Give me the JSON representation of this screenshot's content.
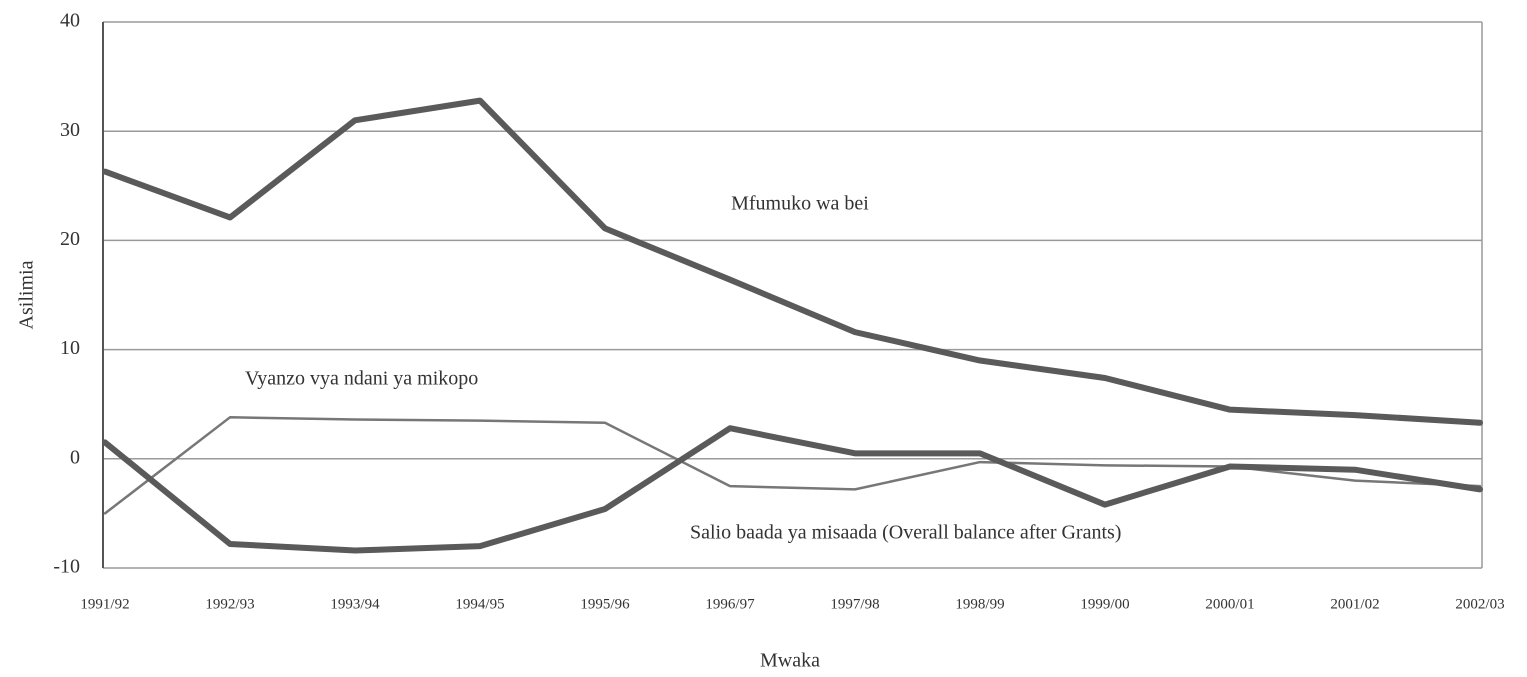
{
  "chart_data": {
    "type": "line",
    "x_label": "Mwaka",
    "y_label": "Asilimia",
    "categories": [
      "1991/92",
      "1992/93",
      "1993/94",
      "1994/95",
      "1995/96",
      "1996/97",
      "1997/98",
      "1998/99",
      "1999/00",
      "2000/01",
      "2001/02",
      "2002/03"
    ],
    "series": [
      {
        "name": "Mfumuko wa bei",
        "color": "#5a5a5a",
        "values": [
          26.3,
          22.1,
          31,
          32.8,
          21.1,
          16.4,
          11.6,
          9,
          7.4,
          4.5,
          4,
          3.3
        ]
      },
      {
        "name": "Vyanzo vya ndani ya mikopo",
        "color": "#777777",
        "values": [
          -5,
          3.8,
          3.6,
          3.5,
          3.3,
          -2.5,
          -2.8,
          -0.3,
          -0.6,
          -0.7,
          -2,
          -2.5
        ]
      },
      {
        "name": "Salio baada ya misaada (Overall balance after Grants)",
        "color": "#5a5a5a",
        "values": [
          1.5,
          -7.8,
          -8.4,
          -8,
          -4.6,
          2.8,
          0.5,
          0.5,
          -4.2,
          -0.7,
          -1,
          -2.8
        ]
      }
    ],
    "ylim": [
      -10,
      40
    ],
    "yticks": [
      -10,
      0,
      10,
      20,
      30,
      40
    ],
    "grid": true
  }
}
